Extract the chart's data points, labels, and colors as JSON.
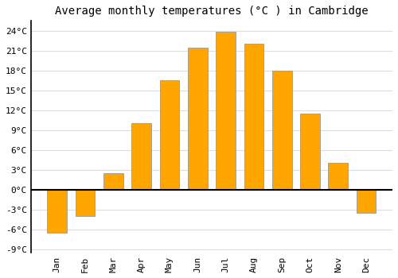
{
  "title": "Average monthly temperatures (°C ) in Cambridge",
  "months": [
    "Jan",
    "Feb",
    "Mar",
    "Apr",
    "May",
    "Jun",
    "Jul",
    "Aug",
    "Sep",
    "Oct",
    "Nov",
    "Dec"
  ],
  "temperatures": [
    -6.5,
    -4.0,
    2.5,
    10.0,
    16.5,
    21.5,
    23.8,
    22.0,
    18.0,
    11.5,
    4.0,
    -3.5
  ],
  "bar_color": "#FFA500",
  "bar_edge_color": "#999999",
  "background_color": "#ffffff",
  "grid_color": "#dddddd",
  "yticks": [
    -9,
    -6,
    -3,
    0,
    3,
    6,
    9,
    12,
    15,
    18,
    21,
    24
  ],
  "ylim": [
    -9.5,
    25.5
  ],
  "title_fontsize": 10,
  "tick_fontsize": 8,
  "font_family": "monospace"
}
